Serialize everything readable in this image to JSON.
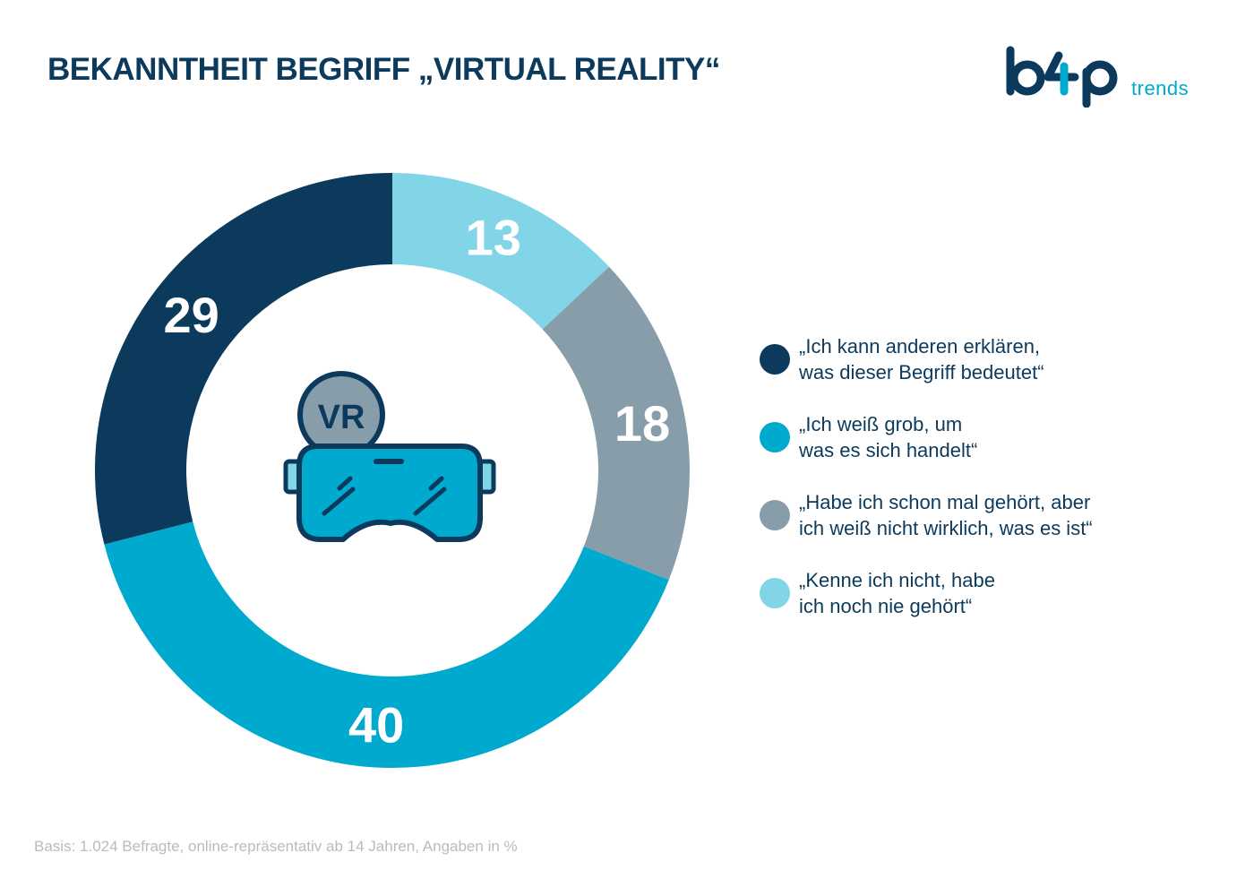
{
  "header": {
    "title": "BEKANNTHEIT BEGRIFF „VIRTUAL REALITY“",
    "logo_text": "trends"
  },
  "chart_data": {
    "type": "pie",
    "title": "BEKANNTHEIT BEGRIFF „VIRTUAL REALITY“",
    "unit": "%",
    "series": [
      {
        "label": "„Kenne ich nicht, habe\nich noch nie gehört“",
        "value": 13,
        "color": "#82d5e6"
      },
      {
        "label": "„Habe ich schon mal gehört, aber\nich weiß nicht wirklich, was es ist“",
        "value": 18,
        "color": "#889daa"
      },
      {
        "label": "„Ich weiß grob, um\nwas es sich handelt“",
        "value": 40,
        "color": "#00a9ce"
      },
      {
        "label": "„Ich kann anderen erklären,\nwas dieser Begriff bedeutet“",
        "value": 29,
        "color": "#0b3a5c"
      }
    ],
    "legend_order": [
      3,
      2,
      1,
      0
    ],
    "center_icon": "vr-headset-icon",
    "center_badge": "VR"
  },
  "footnote": "Basis: 1.024 Befragte, online-repräsentativ ab 14 Jahren, Angaben in %"
}
